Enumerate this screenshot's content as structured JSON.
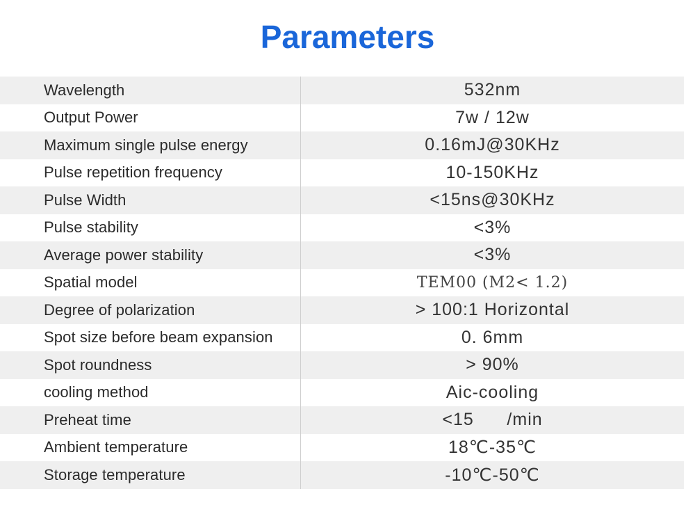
{
  "page": {
    "title": "Parameters"
  },
  "table": {
    "rows": [
      {
        "name": "Wavelength",
        "value": "532nm"
      },
      {
        "name": "Output Power",
        "value": "7w / 12w"
      },
      {
        "name": "Maximum single pulse energy",
        "value": "0.16mJ@30KHz"
      },
      {
        "name": "Pulse repetition frequency",
        "value": "10-150KHz"
      },
      {
        "name": "Pulse Width",
        "value": "<15ns@30KHz"
      },
      {
        "name": "Pulse stability",
        "value": "<3%"
      },
      {
        "name": "Average power stability",
        "value": "<3%"
      },
      {
        "name": "Spatial model",
        "value": "TEM00 (M2< 1.2)"
      },
      {
        "name": "Degree of polarization",
        "value": "> 100:1 Horizontal"
      },
      {
        "name": "Spot size before beam expansion",
        "value": "0. 6mm"
      },
      {
        "name": "Spot roundness",
        "value": "> 90%"
      },
      {
        "name": "cooling method",
        "value": "Aic-cooling"
      },
      {
        "name": "Preheat time",
        "value": "<15      /min"
      },
      {
        "name": "Ambient temperature",
        "value": "18℃-35℃"
      },
      {
        "name": "Storage temperature",
        "value": "-10℃-50℃"
      }
    ]
  }
}
